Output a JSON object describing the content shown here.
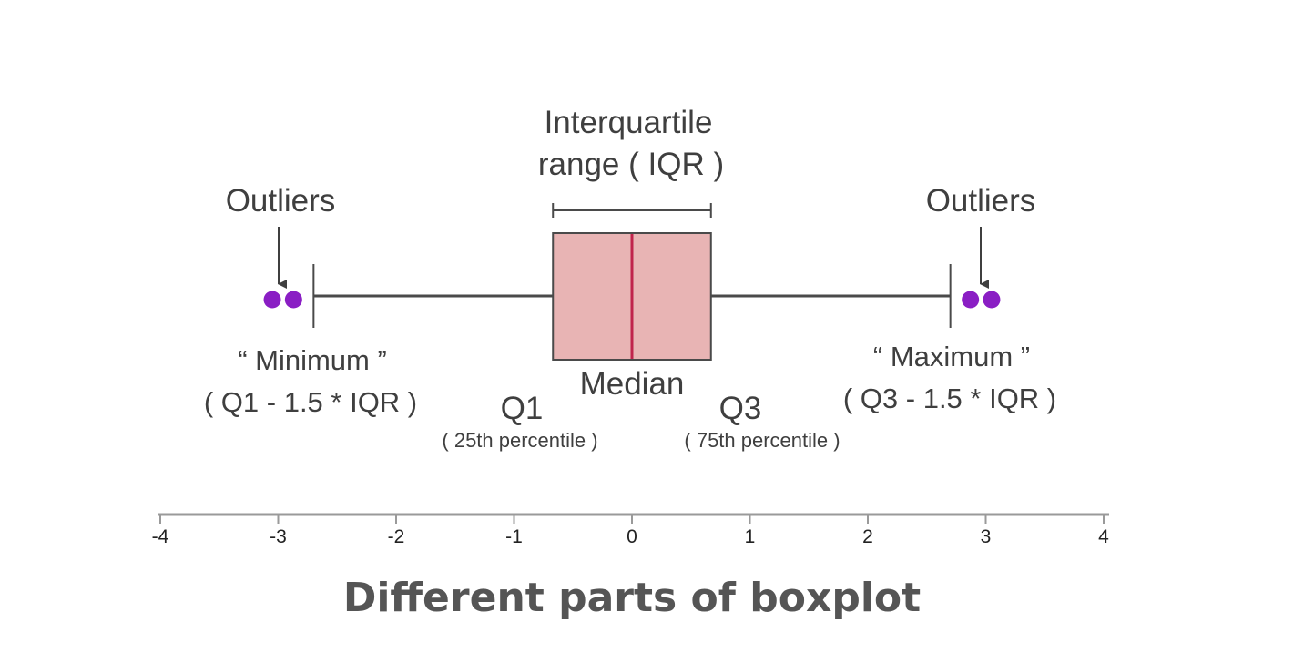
{
  "labels": {
    "iqr_line1": "Interquartile",
    "iqr_line2": "range ( IQR )",
    "outliers_left": "Outliers",
    "outliers_right": "Outliers",
    "minimum_line1": "“ Minimum ”",
    "minimum_line2": "( Q1 - 1.5 * IQR )",
    "maximum_line1": "“ Maximum ”",
    "maximum_line2": "( Q3 - 1.5 * IQR )",
    "q1": "Q1",
    "q1_sub": "( 25th percentile )",
    "q3": "Q3",
    "q3_sub": "( 75th percentile )",
    "median": "Median",
    "title": "Different parts of boxplot"
  },
  "axis": {
    "min": -4,
    "max": 4,
    "ticks": [
      "-4",
      "-3",
      "-2",
      "-1",
      "0",
      "1",
      "2",
      "3",
      "4"
    ]
  },
  "boxplot": {
    "q1": -0.67,
    "median": 0,
    "q3": 0.67,
    "whisker_low": -2.7,
    "whisker_high": 2.7,
    "outliers": [
      -3.05,
      -2.87,
      2.87,
      3.05
    ]
  },
  "colors": {
    "box_fill": "#e8b4b4",
    "median_line": "#c0244c",
    "outlier": "#8a1ec4",
    "lines": "#4a4a4a",
    "axis": "#9a9a9a"
  }
}
